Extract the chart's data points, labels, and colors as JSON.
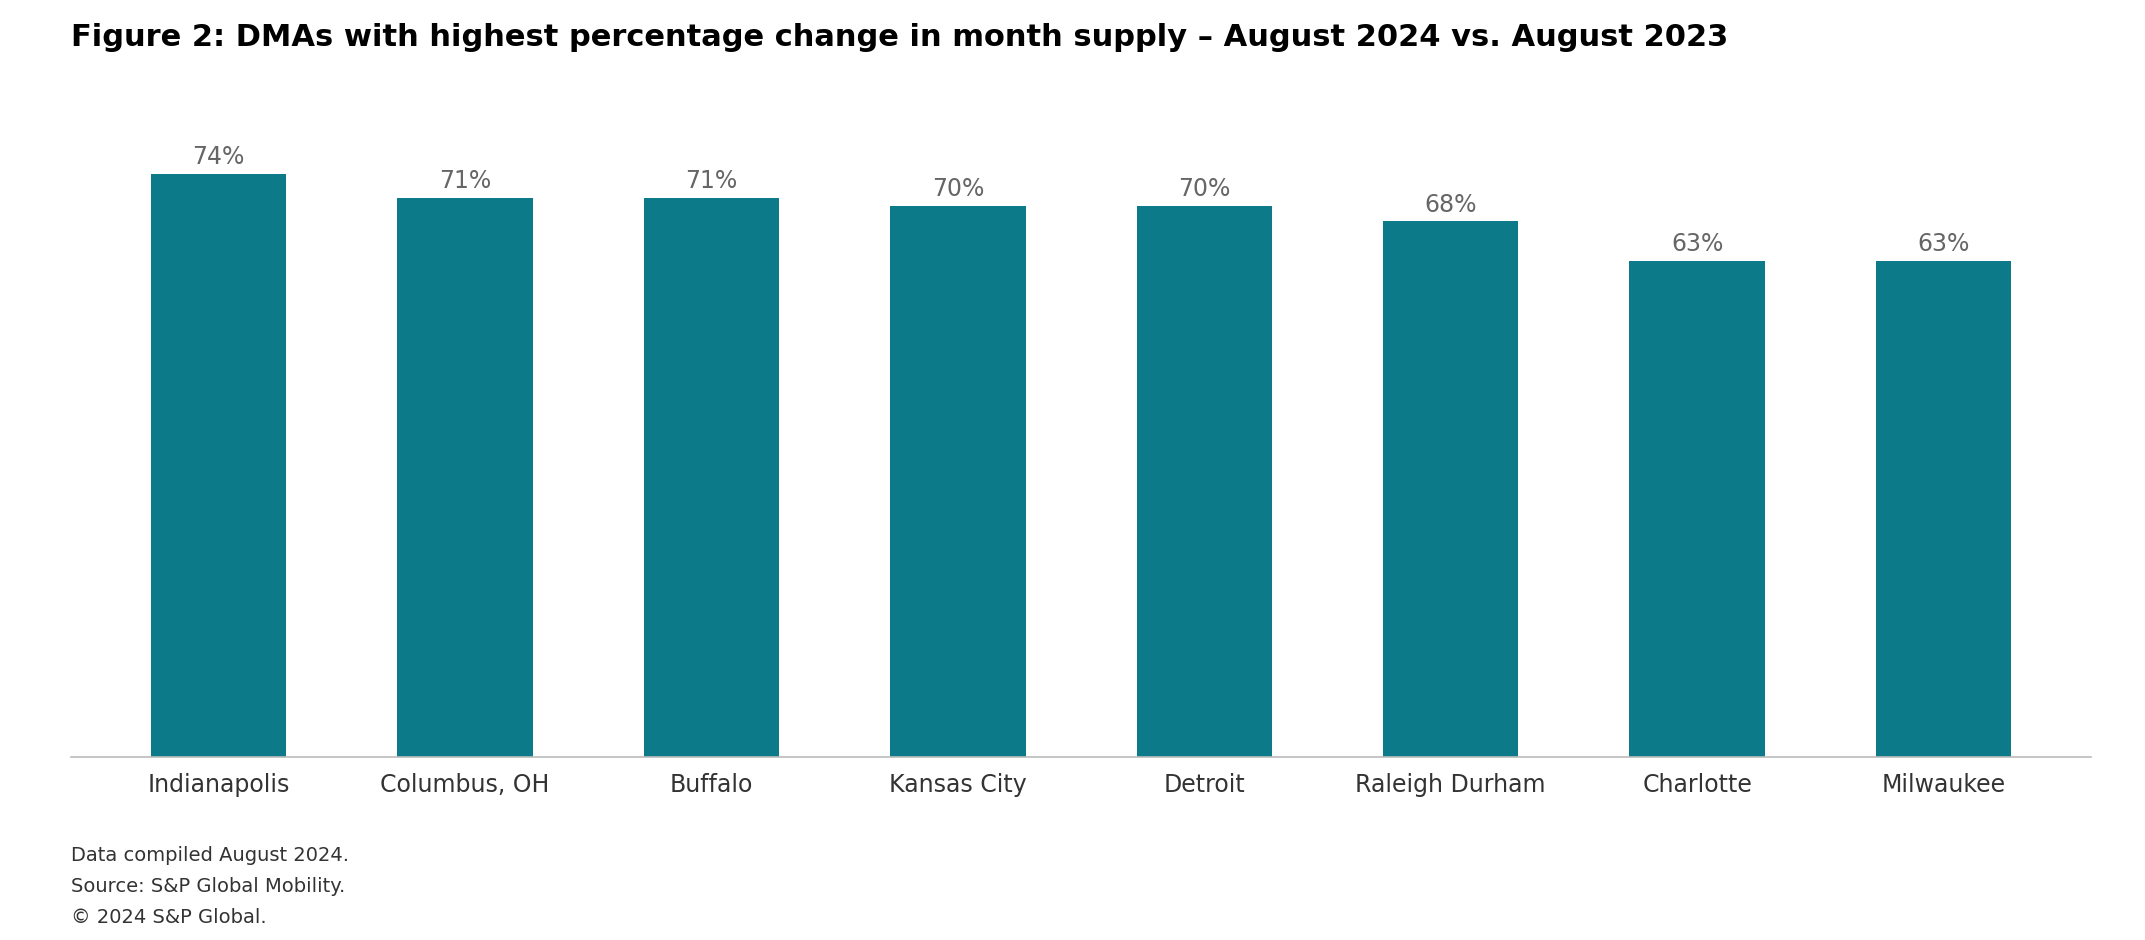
{
  "title": "Figure 2: DMAs with highest percentage change in month supply – August 2024 vs. August 2023",
  "categories": [
    "Indianapolis",
    "Columbus, OH",
    "Buffalo",
    "Kansas City",
    "Detroit",
    "Raleigh Durham",
    "Charlotte",
    "Milwaukee"
  ],
  "values": [
    74,
    71,
    71,
    70,
    70,
    68,
    63,
    63
  ],
  "bar_color": "#0d7a8a",
  "background_color": "#ffffff",
  "title_fontsize": 22,
  "label_fontsize": 17,
  "tick_fontsize": 17,
  "footer_fontsize": 14,
  "footer_lines": [
    "Data compiled August 2024.",
    "Source: S&P Global Mobility.",
    "© 2024 S&P Global."
  ],
  "ylim": [
    0,
    80
  ],
  "bar_bottom": 0,
  "bar_width": 0.55
}
